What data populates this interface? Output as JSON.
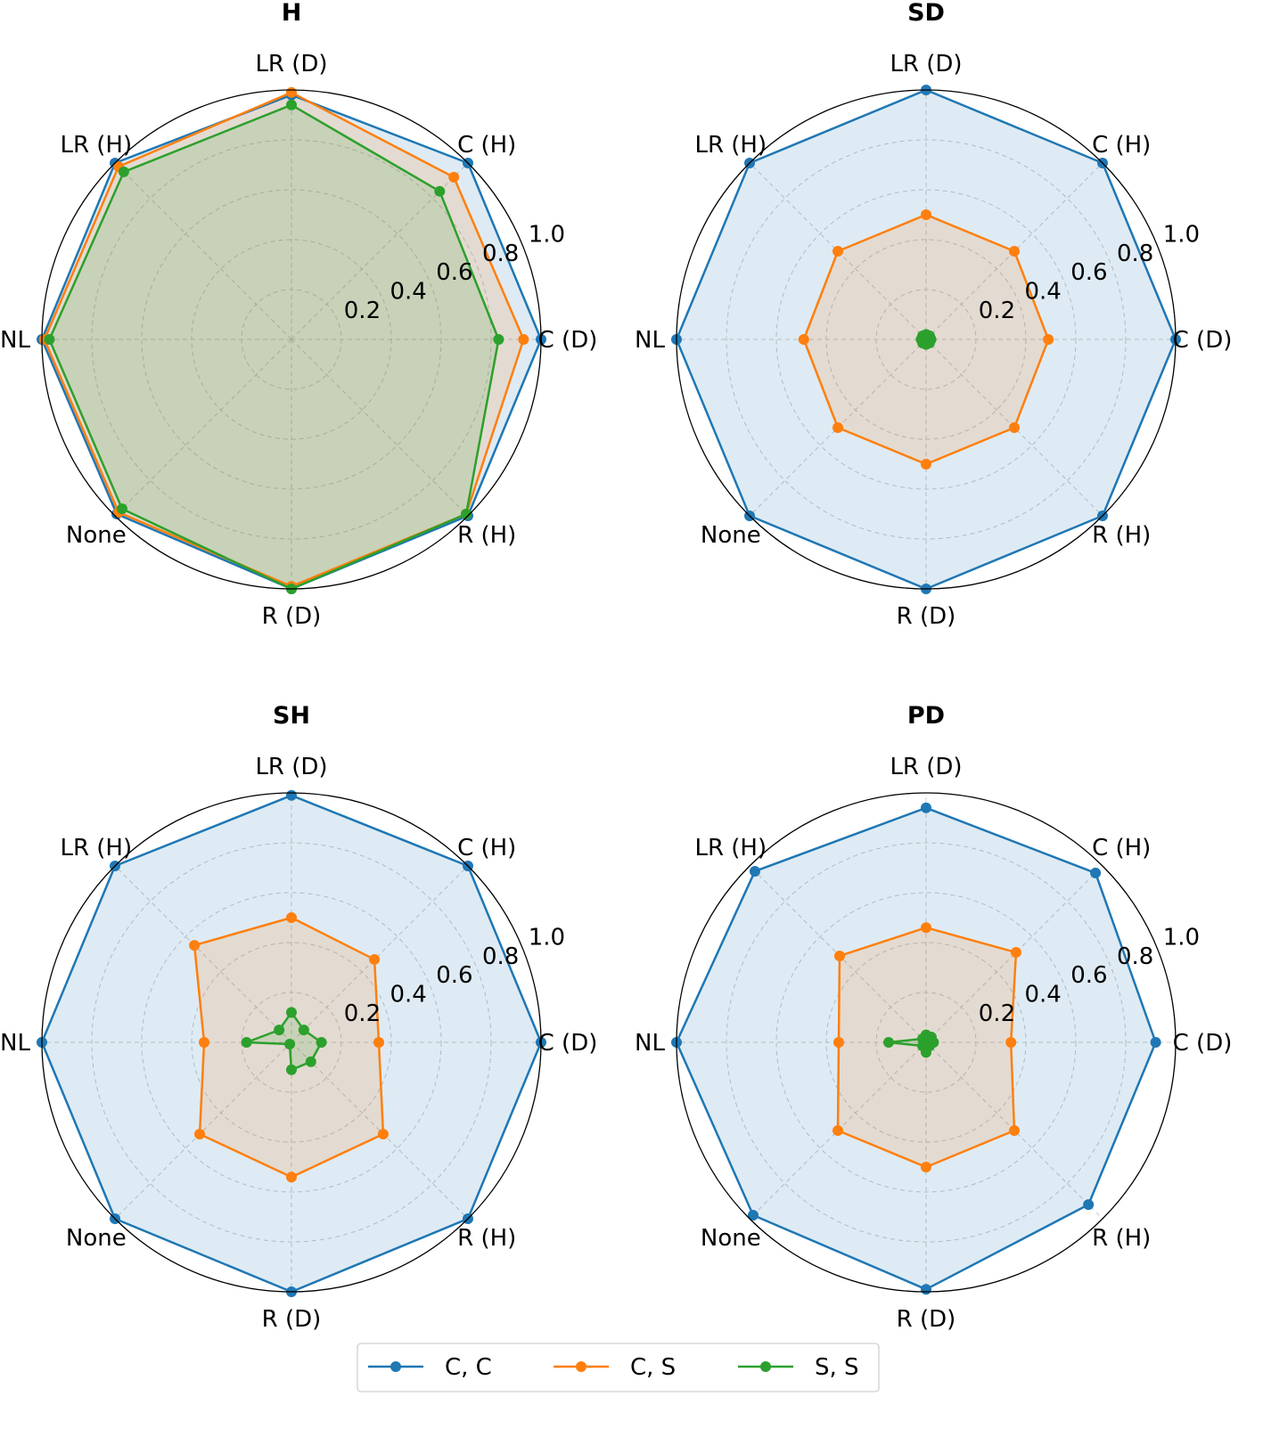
{
  "chart_data": [
    {
      "type": "radar",
      "title": "H",
      "categories": [
        "C (D)",
        "C (H)",
        "LR (D)",
        "LR (H)",
        "NL",
        "None",
        "R (D)",
        "R (H)"
      ],
      "rticks": [
        "0.2",
        "0.4",
        "0.6",
        "0.8",
        "1.0"
      ],
      "rlim": [
        0,
        1
      ],
      "series": [
        {
          "name": "C, C",
          "values": [
            1.0,
            1.0,
            0.98,
            1.0,
            1.0,
            0.99,
            1.0,
            1.0
          ]
        },
        {
          "name": "C, S",
          "values": [
            0.93,
            0.92,
            0.99,
            0.98,
            0.99,
            0.98,
            0.99,
            0.99
          ]
        },
        {
          "name": "S, S",
          "values": [
            0.83,
            0.84,
            0.94,
            0.95,
            0.97,
            0.96,
            1.0,
            0.99
          ]
        }
      ]
    },
    {
      "type": "radar",
      "title": "SD",
      "categories": [
        "C (D)",
        "C (H)",
        "LR (D)",
        "LR (H)",
        "NL",
        "None",
        "R (D)",
        "R (H)"
      ],
      "rticks": [
        "0.2",
        "0.4",
        "0.6",
        "0.8",
        "1.0"
      ],
      "rlim": [
        0,
        1
      ],
      "series": [
        {
          "name": "C, C",
          "values": [
            1.0,
            1.0,
            1.0,
            1.0,
            1.0,
            1.0,
            1.0,
            1.0
          ]
        },
        {
          "name": "C, S",
          "values": [
            0.49,
            0.5,
            0.5,
            0.5,
            0.49,
            0.5,
            0.5,
            0.5
          ]
        },
        {
          "name": "S, S",
          "values": [
            0.02,
            0.02,
            0.02,
            0.02,
            0.02,
            0.02,
            0.02,
            0.02
          ]
        }
      ]
    },
    {
      "type": "radar",
      "title": "SH",
      "categories": [
        "C (D)",
        "C (H)",
        "LR (D)",
        "LR (H)",
        "NL",
        "None",
        "R (D)",
        "R (H)"
      ],
      "rticks": [
        "0.2",
        "0.4",
        "0.6",
        "0.8",
        "1.0"
      ],
      "rlim": [
        0,
        1
      ],
      "series": [
        {
          "name": "C, C",
          "values": [
            1.0,
            1.0,
            0.99,
            1.0,
            1.0,
            1.0,
            1.0,
            1.0
          ]
        },
        {
          "name": "C, S",
          "values": [
            0.35,
            0.47,
            0.5,
            0.55,
            0.35,
            0.52,
            0.54,
            0.52
          ]
        },
        {
          "name": "S, S",
          "values": [
            0.12,
            0.07,
            0.12,
            0.07,
            0.18,
            0.01,
            0.11,
            0.11
          ]
        }
      ]
    },
    {
      "type": "radar",
      "title": "PD",
      "categories": [
        "C (D)",
        "C (H)",
        "LR (D)",
        "LR (H)",
        "NL",
        "None",
        "R (D)",
        "R (H)"
      ],
      "rticks": [
        "0.2",
        "0.4",
        "0.6",
        "0.8",
        "1.0"
      ],
      "rlim": [
        0,
        1
      ],
      "series": [
        {
          "name": "C, C",
          "values": [
            0.92,
            0.96,
            0.94,
            0.97,
            1.0,
            0.98,
            0.99,
            0.92
          ]
        },
        {
          "name": "C, S",
          "values": [
            0.34,
            0.51,
            0.46,
            0.49,
            0.35,
            0.5,
            0.5,
            0.5
          ]
        },
        {
          "name": "S, S",
          "values": [
            0.03,
            0.03,
            0.03,
            0.02,
            0.15,
            0.02,
            0.04,
            0.02
          ]
        }
      ]
    }
  ],
  "legend": {
    "placement": "bottom-center",
    "entries": [
      {
        "label": "C, C",
        "color": "#1f77b4"
      },
      {
        "label": "C, S",
        "color": "#ff7f0e"
      },
      {
        "label": "S, S",
        "color": "#2ca02c"
      }
    ]
  }
}
